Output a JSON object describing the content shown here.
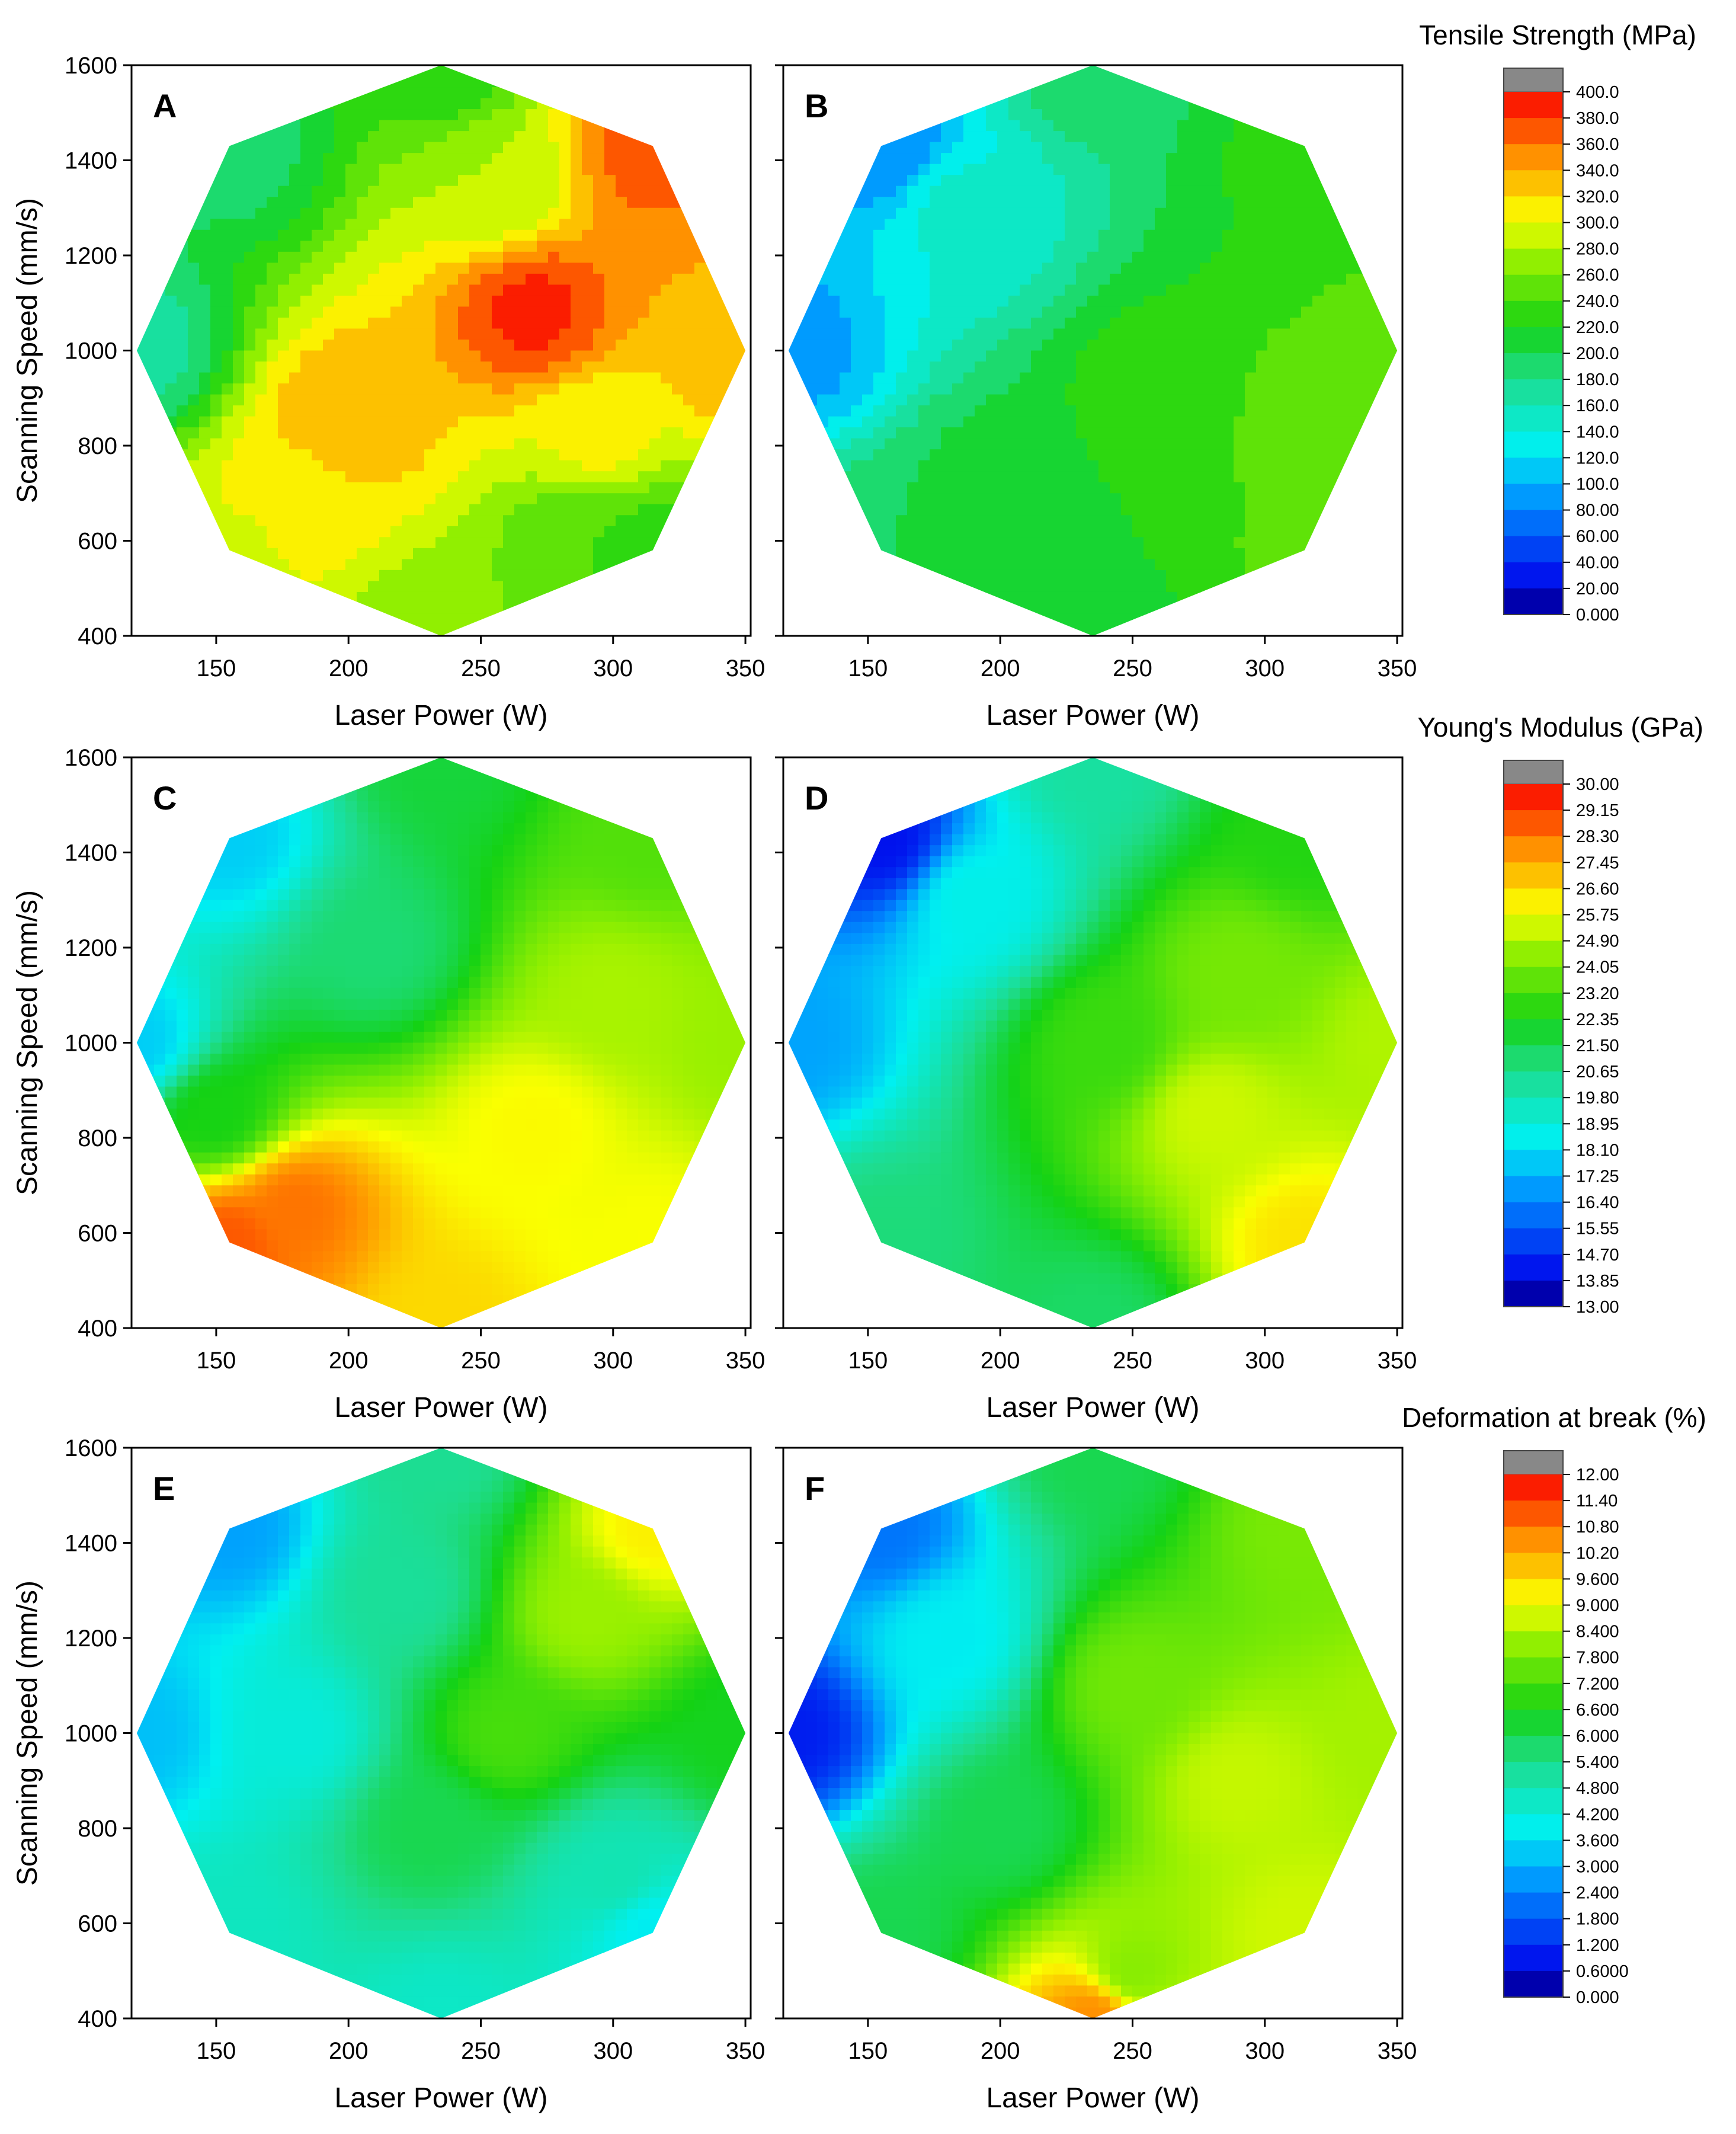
{
  "chart_data": {
    "type": "contour",
    "axis_defaults": {
      "xlabel": "Laser Power (W)",
      "ylabel": "Scanning Speed (mm/s)",
      "xlim": [
        118,
        352
      ],
      "ylim": [
        400,
        1600
      ],
      "xticks": [
        "150",
        "200",
        "250",
        "300",
        "350"
      ],
      "yticks": [
        "400",
        "600",
        "800",
        "1000",
        "1200",
        "1400",
        "1600"
      ]
    },
    "design_region": {
      "shape": "octagon",
      "vertices_laser_power_W": [
        120,
        155,
        235,
        315,
        350,
        315,
        235,
        155
      ],
      "vertices_scanning_speed_mm_s": [
        1000,
        1430,
        1600,
        1430,
        1000,
        580,
        400,
        580
      ]
    },
    "scales": [
      {
        "id": "tensile",
        "title": "Tensile Strength (MPa)",
        "ticks": [
          "400.0",
          "380.0",
          "360.0",
          "340.0",
          "320.0",
          "300.0",
          "280.0",
          "260.0",
          "240.0",
          "220.0",
          "200.0",
          "180.0",
          "160.0",
          "140.0",
          "120.0",
          "100.0",
          "80.00",
          "60.00",
          "40.00",
          "20.00",
          "0.000"
        ],
        "min": 0,
        "max": 400
      },
      {
        "id": "modulus",
        "title": "Young's Modulus (GPa)",
        "ticks": [
          "30.00",
          "29.15",
          "28.30",
          "27.45",
          "26.60",
          "25.75",
          "24.90",
          "24.05",
          "23.20",
          "22.35",
          "21.50",
          "20.65",
          "19.80",
          "18.95",
          "18.10",
          "17.25",
          "16.40",
          "15.55",
          "14.70",
          "13.85",
          "13.00"
        ],
        "min": 13,
        "max": 30
      },
      {
        "id": "deformation",
        "title": "Deformation at break  (%)",
        "ticks": [
          "12.00",
          "11.40",
          "10.80",
          "10.20",
          "9.600",
          "9.000",
          "8.400",
          "7.800",
          "7.200",
          "6.600",
          "6.000",
          "5.400",
          "4.800",
          "4.200",
          "3.600",
          "3.000",
          "2.400",
          "1.800",
          "1.200",
          "0.6000",
          "0.000"
        ],
        "min": 0,
        "max": 12
      }
    ],
    "panels": [
      {
        "label": "A",
        "scale": "tensile",
        "fill": "banded",
        "anchors": [
          {
            "lp": 120,
            "ss": 1000,
            "v": 170
          },
          {
            "lp": 155,
            "ss": 1430,
            "v": 190
          },
          {
            "lp": 235,
            "ss": 1600,
            "v": 225
          },
          {
            "lp": 315,
            "ss": 1430,
            "v": 370
          },
          {
            "lp": 350,
            "ss": 1000,
            "v": 340
          },
          {
            "lp": 315,
            "ss": 580,
            "v": 228
          },
          {
            "lp": 235,
            "ss": 400,
            "v": 262
          },
          {
            "lp": 155,
            "ss": 580,
            "v": 295
          },
          {
            "lp": 270,
            "ss": 1080,
            "v": 385
          },
          {
            "lp": 200,
            "ss": 860,
            "v": 340
          },
          {
            "lp": 180,
            "ss": 700,
            "v": 315
          },
          {
            "lp": 255,
            "ss": 1350,
            "v": 280
          },
          {
            "lp": 295,
            "ss": 820,
            "v": 305
          },
          {
            "lp": 290,
            "ss": 600,
            "v": 240
          }
        ]
      },
      {
        "label": "B",
        "scale": "tensile",
        "fill": "banded",
        "anchors": [
          {
            "lp": 120,
            "ss": 1000,
            "v": 92
          },
          {
            "lp": 155,
            "ss": 1430,
            "v": 82
          },
          {
            "lp": 235,
            "ss": 1600,
            "v": 190
          },
          {
            "lp": 315,
            "ss": 1430,
            "v": 225
          },
          {
            "lp": 350,
            "ss": 1000,
            "v": 245
          },
          {
            "lp": 315,
            "ss": 580,
            "v": 242
          },
          {
            "lp": 235,
            "ss": 400,
            "v": 215
          },
          {
            "lp": 155,
            "ss": 580,
            "v": 200
          },
          {
            "lp": 260,
            "ss": 900,
            "v": 232
          },
          {
            "lp": 320,
            "ss": 850,
            "v": 250
          },
          {
            "lp": 185,
            "ss": 1300,
            "v": 145
          },
          {
            "lp": 200,
            "ss": 700,
            "v": 210
          }
        ]
      },
      {
        "label": "C",
        "scale": "modulus",
        "fill": "smooth",
        "anchors": [
          {
            "lp": 120,
            "ss": 1000,
            "v": 17.8
          },
          {
            "lp": 155,
            "ss": 1430,
            "v": 17.8
          },
          {
            "lp": 235,
            "ss": 1600,
            "v": 21.8
          },
          {
            "lp": 315,
            "ss": 1430,
            "v": 23.4
          },
          {
            "lp": 350,
            "ss": 1000,
            "v": 24.6
          },
          {
            "lp": 315,
            "ss": 580,
            "v": 25.9
          },
          {
            "lp": 235,
            "ss": 400,
            "v": 26.6
          },
          {
            "lp": 155,
            "ss": 580,
            "v": 28.7
          },
          {
            "lp": 180,
            "ss": 650,
            "v": 28.3
          },
          {
            "lp": 270,
            "ss": 820,
            "v": 26.0
          },
          {
            "lp": 300,
            "ss": 1100,
            "v": 24.8
          },
          {
            "lp": 210,
            "ss": 1200,
            "v": 21.0
          },
          {
            "lp": 150,
            "ss": 850,
            "v": 22.4
          }
        ]
      },
      {
        "label": "D",
        "scale": "modulus",
        "fill": "smooth",
        "anchors": [
          {
            "lp": 120,
            "ss": 1000,
            "v": 17.0
          },
          {
            "lp": 155,
            "ss": 1430,
            "v": 14.2
          },
          {
            "lp": 235,
            "ss": 1600,
            "v": 20.2
          },
          {
            "lp": 315,
            "ss": 1430,
            "v": 22.6
          },
          {
            "lp": 350,
            "ss": 1000,
            "v": 24.9
          },
          {
            "lp": 315,
            "ss": 580,
            "v": 26.4
          },
          {
            "lp": 235,
            "ss": 400,
            "v": 21.2
          },
          {
            "lp": 155,
            "ss": 580,
            "v": 20.9
          },
          {
            "lp": 280,
            "ss": 850,
            "v": 25.3
          },
          {
            "lp": 240,
            "ss": 1000,
            "v": 23.0
          },
          {
            "lp": 190,
            "ss": 1300,
            "v": 18.6
          },
          {
            "lp": 290,
            "ss": 1150,
            "v": 24.0
          }
        ]
      },
      {
        "label": "E",
        "scale": "deformation",
        "fill": "smooth",
        "anchors": [
          {
            "lp": 120,
            "ss": 1000,
            "v": 3.2
          },
          {
            "lp": 155,
            "ss": 1430,
            "v": 2.8
          },
          {
            "lp": 235,
            "ss": 1600,
            "v": 5.3
          },
          {
            "lp": 315,
            "ss": 1430,
            "v": 9.3
          },
          {
            "lp": 350,
            "ss": 1000,
            "v": 6.5
          },
          {
            "lp": 315,
            "ss": 580,
            "v": 3.8
          },
          {
            "lp": 235,
            "ss": 400,
            "v": 4.5
          },
          {
            "lp": 155,
            "ss": 580,
            "v": 4.6
          },
          {
            "lp": 290,
            "ss": 1250,
            "v": 8.2
          },
          {
            "lp": 260,
            "ss": 1000,
            "v": 7.2
          },
          {
            "lp": 230,
            "ss": 800,
            "v": 6.0
          },
          {
            "lp": 220,
            "ss": 1300,
            "v": 5.2
          },
          {
            "lp": 300,
            "ss": 700,
            "v": 4.8
          },
          {
            "lp": 180,
            "ss": 1000,
            "v": 4.2
          }
        ]
      },
      {
        "label": "F",
        "scale": "deformation",
        "fill": "smooth",
        "anchors": [
          {
            "lp": 120,
            "ss": 1000,
            "v": 1.0
          },
          {
            "lp": 155,
            "ss": 1430,
            "v": 2.2
          },
          {
            "lp": 235,
            "ss": 1600,
            "v": 6.0
          },
          {
            "lp": 315,
            "ss": 1430,
            "v": 7.8
          },
          {
            "lp": 350,
            "ss": 1000,
            "v": 8.3
          },
          {
            "lp": 315,
            "ss": 580,
            "v": 8.7
          },
          {
            "lp": 235,
            "ss": 400,
            "v": 10.5
          },
          {
            "lp": 155,
            "ss": 580,
            "v": 6.0
          },
          {
            "lp": 290,
            "ss": 900,
            "v": 8.6
          },
          {
            "lp": 250,
            "ss": 1100,
            "v": 7.7
          },
          {
            "lp": 200,
            "ss": 800,
            "v": 6.0
          },
          {
            "lp": 180,
            "ss": 1200,
            "v": 3.8
          },
          {
            "lp": 250,
            "ss": 500,
            "v": 8.0
          }
        ]
      }
    ]
  }
}
